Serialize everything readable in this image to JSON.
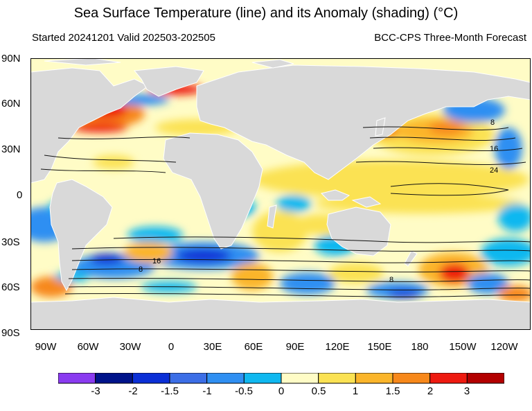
{
  "header": {
    "title": "Sea Surface Temperature (line) and its Anomaly (shading) (°C)",
    "subtitle_left": "Started 20241201  Valid 202503-202505",
    "subtitle_right": "BCC-CPS Three-Month Forecast"
  },
  "map": {
    "lat_labels": [
      "90N",
      "60N",
      "30N",
      "0",
      "30S",
      "60S",
      "90S"
    ],
    "lon_labels": [
      "90W",
      "60W",
      "30W",
      "0",
      "30E",
      "60E",
      "90E",
      "120E",
      "150E",
      "180",
      "150W",
      "120W"
    ],
    "contour_labels": [
      "8",
      "16",
      "24",
      "16",
      "8",
      "8"
    ],
    "land_color": "#d9d9d9"
  },
  "colorbar": {
    "tick_labels": [
      "-3",
      "-2",
      "-1.5",
      "-1",
      "-0.5",
      "0",
      "0.5",
      "1",
      "1.5",
      "2",
      "3"
    ],
    "colors": [
      "#8a3bf0",
      "#00138a",
      "#0b2fd6",
      "#3c6ee6",
      "#2f8ff2",
      "#0fb8f0",
      "#fffcc6",
      "#fbe253",
      "#fbb52a",
      "#f7881a",
      "#ee1a10",
      "#b30000"
    ]
  }
}
